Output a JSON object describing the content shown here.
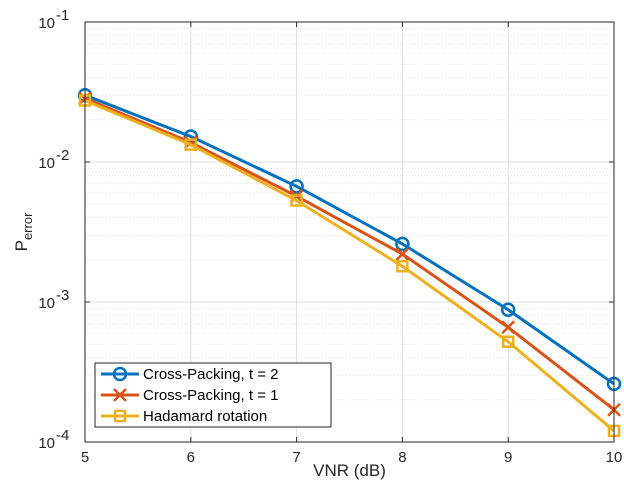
{
  "chart_data": {
    "type": "line",
    "xlabel": "VNR (dB)",
    "ylabel": "P",
    "ylabel_subscript": "error",
    "xlim": [
      5,
      10
    ],
    "ylim": [
      0.0001,
      0.1
    ],
    "yscale": "log",
    "grid": true,
    "minor_grid": true,
    "legend_position": "bottom-left",
    "x_ticks": [
      {
        "value": 5,
        "label": "5"
      },
      {
        "value": 6,
        "label": "6"
      },
      {
        "value": 7,
        "label": "7"
      },
      {
        "value": 8,
        "label": "8"
      },
      {
        "value": 9,
        "label": "9"
      },
      {
        "value": 10,
        "label": "10"
      }
    ],
    "y_ticks": [
      {
        "value": 0.0001,
        "base": "10",
        "exp": "-4"
      },
      {
        "value": 0.001,
        "base": "10",
        "exp": "-3"
      },
      {
        "value": 0.01,
        "base": "10",
        "exp": "-2"
      },
      {
        "value": 0.1,
        "base": "10",
        "exp": "-1"
      }
    ],
    "x": [
      5,
      6,
      7,
      8,
      9,
      10
    ],
    "series": [
      {
        "name": "Cross-Packing, t = 2",
        "color": "#0072BD",
        "marker": "circle",
        "values": [
          0.03,
          0.0152,
          0.0067,
          0.0026,
          0.00088,
          0.00026
        ]
      },
      {
        "name": "Cross-Packing, t = 1",
        "color": "#D95319",
        "marker": "x",
        "values": [
          0.0285,
          0.0138,
          0.0057,
          0.0022,
          0.00066,
          0.00017
        ]
      },
      {
        "name": "Hadamard rotation",
        "color": "#EDB120",
        "marker": "square",
        "values": [
          0.0275,
          0.0133,
          0.0053,
          0.0018,
          0.00052,
          0.00012
        ]
      }
    ]
  }
}
